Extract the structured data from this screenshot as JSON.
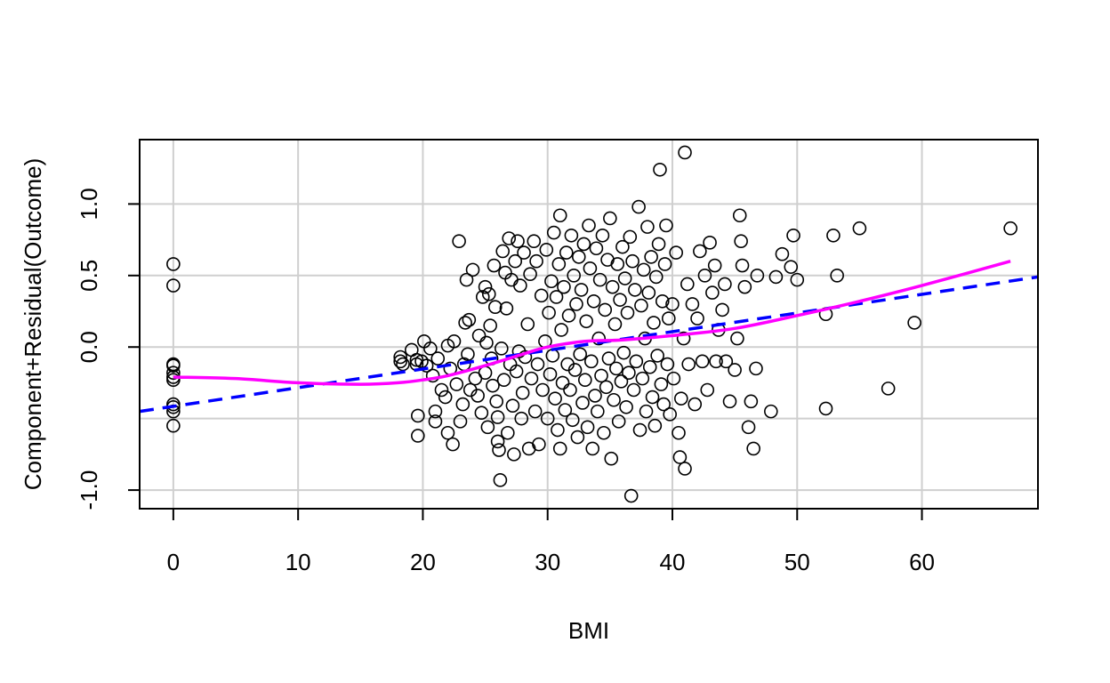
{
  "chart_data": {
    "type": "scatter",
    "xlabel": "BMI",
    "ylabel": "Component+Residual(Outcome)",
    "xlim": [
      -2.7,
      69.3
    ],
    "ylim": [
      -1.13,
      1.45
    ],
    "x_ticks": [
      0,
      10,
      20,
      30,
      40,
      50,
      60
    ],
    "x_tick_labels": [
      "0",
      "10",
      "20",
      "30",
      "40",
      "50",
      "60"
    ],
    "y_ticks": [
      -1.0,
      0.0,
      0.5,
      1.0
    ],
    "y_tick_labels": [
      "-1.0",
      "0.0",
      "0.5",
      "1.0"
    ],
    "grid_x": [
      0,
      10,
      20,
      30,
      40,
      50,
      60
    ],
    "grid_y": [
      -1.0,
      -0.5,
      0.0,
      0.5,
      1.0
    ],
    "grid": true,
    "colors": {
      "points": "#000000",
      "linear_fit": "#0000ff",
      "smooth_fit": "#ff00ff",
      "grid": "#cfcfcf"
    },
    "linear_fit": {
      "line_style": "dashed",
      "x": [
        -2.7,
        69.3
      ],
      "y": [
        -0.45,
        0.49
      ]
    },
    "smooth_fit": {
      "line_style": "solid",
      "x": [
        0,
        5,
        10,
        15,
        18,
        20,
        22,
        25,
        28,
        30,
        33,
        36,
        40,
        45,
        50,
        55,
        60,
        67.1
      ],
      "y": [
        -0.21,
        -0.22,
        -0.25,
        -0.26,
        -0.25,
        -0.23,
        -0.2,
        -0.13,
        -0.05,
        0.0,
        0.04,
        0.05,
        0.08,
        0.13,
        0.22,
        0.32,
        0.43,
        0.6
      ]
    },
    "points": [
      {
        "x": 0,
        "y": 0.58
      },
      {
        "x": 0,
        "y": 0.43
      },
      {
        "x": 0,
        "y": -0.12
      },
      {
        "x": 0,
        "y": -0.13
      },
      {
        "x": 0,
        "y": -0.18
      },
      {
        "x": 0,
        "y": -0.21
      },
      {
        "x": 0,
        "y": -0.23
      },
      {
        "x": 0,
        "y": -0.4
      },
      {
        "x": 0,
        "y": -0.42
      },
      {
        "x": 0,
        "y": -0.45
      },
      {
        "x": 0,
        "y": -0.55
      },
      {
        "x": 18.2,
        "y": -0.07
      },
      {
        "x": 18.2,
        "y": -0.1
      },
      {
        "x": 18.4,
        "y": -0.12
      },
      {
        "x": 19.1,
        "y": -0.02
      },
      {
        "x": 19.5,
        "y": -0.09
      },
      {
        "x": 19.5,
        "y": -0.12
      },
      {
        "x": 19.6,
        "y": -0.48
      },
      {
        "x": 19.6,
        "y": -0.62
      },
      {
        "x": 19.9,
        "y": -0.1
      },
      {
        "x": 20.1,
        "y": 0.04
      },
      {
        "x": 20.3,
        "y": -0.13
      },
      {
        "x": 20.6,
        "y": -0.01
      },
      {
        "x": 20.8,
        "y": -0.2
      },
      {
        "x": 21.0,
        "y": -0.45
      },
      {
        "x": 21.0,
        "y": -0.52
      },
      {
        "x": 21.2,
        "y": -0.08
      },
      {
        "x": 21.5,
        "y": -0.3
      },
      {
        "x": 21.8,
        "y": -0.35
      },
      {
        "x": 22.0,
        "y": 0.01
      },
      {
        "x": 22.0,
        "y": -0.6
      },
      {
        "x": 22.2,
        "y": -0.15
      },
      {
        "x": 22.4,
        "y": -0.68
      },
      {
        "x": 22.5,
        "y": 0.04
      },
      {
        "x": 22.7,
        "y": -0.26
      },
      {
        "x": 22.9,
        "y": 0.74
      },
      {
        "x": 23.0,
        "y": -0.52
      },
      {
        "x": 23.2,
        "y": -0.4
      },
      {
        "x": 23.3,
        "y": -0.12
      },
      {
        "x": 23.4,
        "y": 0.17
      },
      {
        "x": 23.5,
        "y": 0.47
      },
      {
        "x": 23.6,
        "y": -0.05
      },
      {
        "x": 23.7,
        "y": 0.19
      },
      {
        "x": 23.8,
        "y": -0.3
      },
      {
        "x": 24.0,
        "y": 0.54
      },
      {
        "x": 24.2,
        "y": -0.22
      },
      {
        "x": 24.4,
        "y": -0.34
      },
      {
        "x": 24.5,
        "y": 0.08
      },
      {
        "x": 24.7,
        "y": -0.46
      },
      {
        "x": 24.8,
        "y": 0.35
      },
      {
        "x": 25.0,
        "y": 0.42
      },
      {
        "x": 25.0,
        "y": -0.18
      },
      {
        "x": 25.1,
        "y": 0.03
      },
      {
        "x": 25.2,
        "y": -0.56
      },
      {
        "x": 25.3,
        "y": 0.37
      },
      {
        "x": 25.4,
        "y": 0.15
      },
      {
        "x": 25.5,
        "y": -0.08
      },
      {
        "x": 25.6,
        "y": -0.27
      },
      {
        "x": 25.7,
        "y": 0.57
      },
      {
        "x": 25.8,
        "y": 0.28
      },
      {
        "x": 25.9,
        "y": -0.38
      },
      {
        "x": 26.0,
        "y": -0.49
      },
      {
        "x": 26.0,
        "y": -0.66
      },
      {
        "x": 26.1,
        "y": -0.72
      },
      {
        "x": 26.2,
        "y": -0.93
      },
      {
        "x": 26.3,
        "y": -0.01
      },
      {
        "x": 26.4,
        "y": 0.67
      },
      {
        "x": 26.5,
        "y": -0.23
      },
      {
        "x": 26.6,
        "y": 0.52
      },
      {
        "x": 26.7,
        "y": 0.27
      },
      {
        "x": 26.8,
        "y": -0.6
      },
      {
        "x": 26.9,
        "y": 0.76
      },
      {
        "x": 27.0,
        "y": -0.12
      },
      {
        "x": 27.1,
        "y": 0.47
      },
      {
        "x": 27.2,
        "y": -0.41
      },
      {
        "x": 27.3,
        "y": -0.75
      },
      {
        "x": 27.4,
        "y": 0.6
      },
      {
        "x": 27.5,
        "y": -0.17
      },
      {
        "x": 27.6,
        "y": 0.74
      },
      {
        "x": 27.7,
        "y": -0.03
      },
      {
        "x": 27.8,
        "y": 0.43
      },
      {
        "x": 27.9,
        "y": -0.5
      },
      {
        "x": 28.0,
        "y": -0.32
      },
      {
        "x": 28.1,
        "y": 0.66
      },
      {
        "x": 28.2,
        "y": -0.07
      },
      {
        "x": 28.4,
        "y": 0.16
      },
      {
        "x": 28.5,
        "y": -0.71
      },
      {
        "x": 28.6,
        "y": 0.51
      },
      {
        "x": 28.7,
        "y": -0.22
      },
      {
        "x": 28.9,
        "y": 0.74
      },
      {
        "x": 29.0,
        "y": -0.45
      },
      {
        "x": 29.1,
        "y": 0.6
      },
      {
        "x": 29.2,
        "y": -0.12
      },
      {
        "x": 29.3,
        "y": -0.68
      },
      {
        "x": 29.5,
        "y": 0.36
      },
      {
        "x": 29.6,
        "y": -0.3
      },
      {
        "x": 29.8,
        "y": 0.04
      },
      {
        "x": 29.9,
        "y": 0.68
      },
      {
        "x": 30.0,
        "y": -0.5
      },
      {
        "x": 30.1,
        "y": 0.24
      },
      {
        "x": 30.2,
        "y": -0.19
      },
      {
        "x": 30.3,
        "y": 0.46
      },
      {
        "x": 30.4,
        "y": -0.06
      },
      {
        "x": 30.5,
        "y": 0.8
      },
      {
        "x": 30.6,
        "y": -0.36
      },
      {
        "x": 30.7,
        "y": 0.35
      },
      {
        "x": 30.8,
        "y": -0.58
      },
      {
        "x": 30.9,
        "y": 0.58
      },
      {
        "x": 31.0,
        "y": 0.92
      },
      {
        "x": 31.0,
        "y": -0.71
      },
      {
        "x": 31.1,
        "y": 0.12
      },
      {
        "x": 31.2,
        "y": -0.25
      },
      {
        "x": 31.3,
        "y": 0.42
      },
      {
        "x": 31.4,
        "y": -0.44
      },
      {
        "x": 31.5,
        "y": 0.66
      },
      {
        "x": 31.6,
        "y": -0.12
      },
      {
        "x": 31.7,
        "y": 0.22
      },
      {
        "x": 31.8,
        "y": -0.3
      },
      {
        "x": 31.9,
        "y": 0.78
      },
      {
        "x": 32.0,
        "y": -0.51
      },
      {
        "x": 32.1,
        "y": 0.5
      },
      {
        "x": 32.2,
        "y": -0.16
      },
      {
        "x": 32.3,
        "y": 0.3
      },
      {
        "x": 32.4,
        "y": -0.63
      },
      {
        "x": 32.5,
        "y": 0.63
      },
      {
        "x": 32.6,
        "y": -0.05
      },
      {
        "x": 32.7,
        "y": 0.4
      },
      {
        "x": 32.8,
        "y": -0.39
      },
      {
        "x": 32.9,
        "y": 0.72
      },
      {
        "x": 33.0,
        "y": -0.23
      },
      {
        "x": 33.1,
        "y": 0.18
      },
      {
        "x": 33.2,
        "y": -0.56
      },
      {
        "x": 33.3,
        "y": 0.85
      },
      {
        "x": 33.4,
        "y": 0.55
      },
      {
        "x": 33.5,
        "y": -0.1
      },
      {
        "x": 33.6,
        "y": -0.71
      },
      {
        "x": 33.7,
        "y": 0.32
      },
      {
        "x": 33.8,
        "y": -0.34
      },
      {
        "x": 33.9,
        "y": 0.69
      },
      {
        "x": 34.0,
        "y": -0.45
      },
      {
        "x": 34.1,
        "y": 0.06
      },
      {
        "x": 34.2,
        "y": 0.47
      },
      {
        "x": 34.3,
        "y": -0.2
      },
      {
        "x": 34.4,
        "y": 0.78
      },
      {
        "x": 34.5,
        "y": -0.6
      },
      {
        "x": 34.6,
        "y": 0.26
      },
      {
        "x": 34.7,
        "y": -0.28
      },
      {
        "x": 34.8,
        "y": 0.61
      },
      {
        "x": 34.9,
        "y": -0.08
      },
      {
        "x": 35.0,
        "y": 0.9
      },
      {
        "x": 35.1,
        "y": -0.78
      },
      {
        "x": 35.2,
        "y": 0.42
      },
      {
        "x": 35.3,
        "y": -0.37
      },
      {
        "x": 35.4,
        "y": 0.16
      },
      {
        "x": 35.5,
        "y": -0.15
      },
      {
        "x": 35.6,
        "y": 0.58
      },
      {
        "x": 35.7,
        "y": -0.52
      },
      {
        "x": 35.8,
        "y": 0.33
      },
      {
        "x": 35.9,
        "y": -0.24
      },
      {
        "x": 36.0,
        "y": 0.7
      },
      {
        "x": 36.1,
        "y": -0.04
      },
      {
        "x": 36.2,
        "y": 0.48
      },
      {
        "x": 36.3,
        "y": -0.42
      },
      {
        "x": 36.4,
        "y": 0.24
      },
      {
        "x": 36.5,
        "y": -0.18
      },
      {
        "x": 36.6,
        "y": 0.77
      },
      {
        "x": 36.7,
        "y": -1.04
      },
      {
        "x": 36.8,
        "y": 0.6
      },
      {
        "x": 36.9,
        "y": -0.3
      },
      {
        "x": 37.0,
        "y": 0.4
      },
      {
        "x": 37.1,
        "y": -0.1
      },
      {
        "x": 37.3,
        "y": 0.98
      },
      {
        "x": 37.4,
        "y": -0.58
      },
      {
        "x": 37.5,
        "y": 0.29
      },
      {
        "x": 37.6,
        "y": -0.22
      },
      {
        "x": 37.7,
        "y": 0.54
      },
      {
        "x": 37.8,
        "y": 0.06
      },
      {
        "x": 37.9,
        "y": -0.45
      },
      {
        "x": 38.0,
        "y": 0.84
      },
      {
        "x": 38.1,
        "y": 0.38
      },
      {
        "x": 38.2,
        "y": -0.14
      },
      {
        "x": 38.3,
        "y": 0.63
      },
      {
        "x": 38.4,
        "y": -0.35
      },
      {
        "x": 38.5,
        "y": 0.17
      },
      {
        "x": 38.6,
        "y": -0.55
      },
      {
        "x": 38.7,
        "y": 0.49
      },
      {
        "x": 38.8,
        "y": -0.06
      },
      {
        "x": 38.9,
        "y": 0.72
      },
      {
        "x": 39.0,
        "y": 1.24
      },
      {
        "x": 39.1,
        "y": -0.26
      },
      {
        "x": 39.2,
        "y": 0.32
      },
      {
        "x": 39.3,
        "y": -0.4
      },
      {
        "x": 39.4,
        "y": 0.58
      },
      {
        "x": 39.5,
        "y": 0.85
      },
      {
        "x": 39.6,
        "y": -0.12
      },
      {
        "x": 39.7,
        "y": 0.2
      },
      {
        "x": 39.8,
        "y": -0.47
      },
      {
        "x": 40.0,
        "y": 0.3
      },
      {
        "x": 40.1,
        "y": -0.22
      },
      {
        "x": 40.3,
        "y": 0.66
      },
      {
        "x": 40.5,
        "y": -0.6
      },
      {
        "x": 40.6,
        "y": -0.77
      },
      {
        "x": 40.7,
        "y": -0.36
      },
      {
        "x": 40.9,
        "y": 0.06
      },
      {
        "x": 41.0,
        "y": 1.36
      },
      {
        "x": 41.0,
        "y": -0.85
      },
      {
        "x": 41.2,
        "y": 0.44
      },
      {
        "x": 41.3,
        "y": -0.12
      },
      {
        "x": 41.6,
        "y": 0.3
      },
      {
        "x": 41.8,
        "y": -0.4
      },
      {
        "x": 42.0,
        "y": 0.2
      },
      {
        "x": 42.2,
        "y": 0.67
      },
      {
        "x": 42.4,
        "y": -0.1
      },
      {
        "x": 42.6,
        "y": 0.5
      },
      {
        "x": 42.8,
        "y": -0.3
      },
      {
        "x": 43.0,
        "y": 0.73
      },
      {
        "x": 43.2,
        "y": 0.38
      },
      {
        "x": 43.4,
        "y": 0.57
      },
      {
        "x": 43.5,
        "y": -0.1
      },
      {
        "x": 43.7,
        "y": 0.12
      },
      {
        "x": 44.0,
        "y": 0.26
      },
      {
        "x": 44.2,
        "y": 0.44
      },
      {
        "x": 44.3,
        "y": -0.1
      },
      {
        "x": 44.6,
        "y": -0.38
      },
      {
        "x": 45.0,
        "y": -0.16
      },
      {
        "x": 45.2,
        "y": 0.06
      },
      {
        "x": 45.4,
        "y": 0.92
      },
      {
        "x": 45.5,
        "y": 0.74
      },
      {
        "x": 45.6,
        "y": 0.57
      },
      {
        "x": 45.8,
        "y": 0.42
      },
      {
        "x": 46.1,
        "y": -0.56
      },
      {
        "x": 46.3,
        "y": -0.38
      },
      {
        "x": 46.5,
        "y": -0.71
      },
      {
        "x": 46.7,
        "y": -0.15
      },
      {
        "x": 46.8,
        "y": 0.5
      },
      {
        "x": 47.9,
        "y": -0.45
      },
      {
        "x": 48.3,
        "y": 0.49
      },
      {
        "x": 48.8,
        "y": 0.65
      },
      {
        "x": 49.5,
        "y": 0.56
      },
      {
        "x": 49.7,
        "y": 0.78
      },
      {
        "x": 50.0,
        "y": 0.47
      },
      {
        "x": 52.3,
        "y": 0.23
      },
      {
        "x": 52.3,
        "y": -0.43
      },
      {
        "x": 52.9,
        "y": 0.78
      },
      {
        "x": 53.2,
        "y": 0.5
      },
      {
        "x": 55.0,
        "y": 0.83
      },
      {
        "x": 57.3,
        "y": -0.29
      },
      {
        "x": 59.4,
        "y": 0.17
      },
      {
        "x": 67.1,
        "y": 0.83
      }
    ]
  }
}
